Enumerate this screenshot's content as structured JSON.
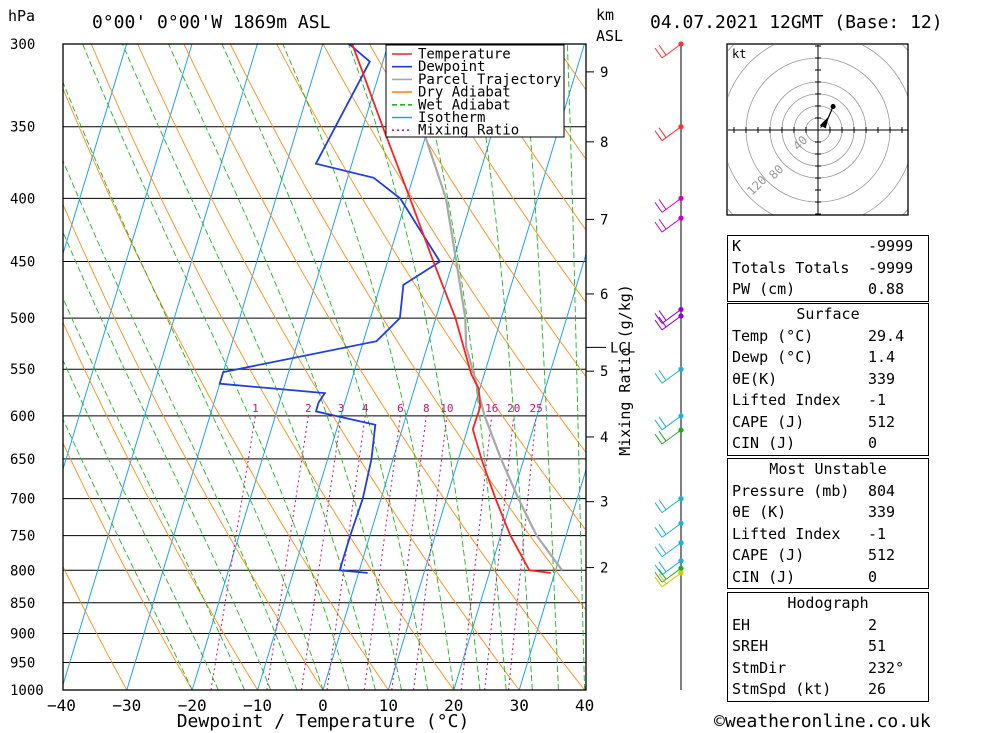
{
  "header": {
    "hpa_unit": "hPa",
    "location": "0°00' 0°00'W 1869m ASL",
    "km_unit": "km",
    "asl_unit": "ASL",
    "datetime": "04.07.2021 12GMT (Base: 12)"
  },
  "footer": {
    "copyright": "©weatheronline.co.uk"
  },
  "chart_data": {
    "type": "skew-t",
    "xlabel": "Dewpoint / Temperature (°C)",
    "ylabel_left": "hPa",
    "ylabel_right": "Mixing Ratio (g/kg)",
    "x_ticks": [
      -40,
      -30,
      -20,
      -10,
      0,
      10,
      20,
      30,
      40
    ],
    "x_tick_labels": [
      "−40",
      "−30",
      "−20",
      "−10",
      "0",
      "10",
      "20",
      "30",
      "40"
    ],
    "pressure_levels": [
      300,
      350,
      400,
      450,
      500,
      550,
      600,
      650,
      700,
      750,
      800,
      850,
      900,
      950,
      1000
    ],
    "km_ticks": [
      {
        "km": 2,
        "p": 796
      },
      {
        "km": 3,
        "p": 704
      },
      {
        "km": 4,
        "p": 624
      },
      {
        "km": 5,
        "p": 552
      },
      {
        "km": 6,
        "p": 478
      },
      {
        "km": 7,
        "p": 416
      },
      {
        "km": 8,
        "p": 360
      },
      {
        "km": 9,
        "p": 316
      }
    ],
    "lcl": {
      "label": "LCL",
      "p": 528
    },
    "mixing_ratio_labels": [
      "1",
      "2",
      "3",
      "4",
      "6",
      "8",
      "10",
      "16",
      "20",
      "25"
    ],
    "mixing_ratio_values": [
      1,
      2,
      3,
      4,
      6,
      8,
      10,
      16,
      20,
      25
    ],
    "legend": [
      {
        "name": "Temperature",
        "color": "#ff2020",
        "style": "solid"
      },
      {
        "name": "Dewpoint",
        "color": "#1f3fdc",
        "style": "solid"
      },
      {
        "name": "Parcel Trajectory",
        "color": "#a8a8a8",
        "style": "solid"
      },
      {
        "name": "Dry Adiabat",
        "color": "#ff8c1a",
        "style": "solid"
      },
      {
        "name": "Wet Adiabat",
        "color": "#1fb51f",
        "style": "dashed"
      },
      {
        "name": "Isotherm",
        "color": "#1ea4e8",
        "style": "solid"
      },
      {
        "name": "Mixing Ratio",
        "color": "#cc1177",
        "style": "dotted"
      }
    ],
    "temperature": [
      {
        "p": 804,
        "t": 29.4
      },
      {
        "p": 800,
        "t": 26.0
      },
      {
        "p": 750,
        "t": 21.5
      },
      {
        "p": 700,
        "t": 17.5
      },
      {
        "p": 650,
        "t": 13.5
      },
      {
        "p": 615,
        "t": 10.8
      },
      {
        "p": 590,
        "t": 10.9
      },
      {
        "p": 570,
        "t": 9.8
      },
      {
        "p": 555,
        "t": 8.0
      },
      {
        "p": 500,
        "t": 3.0
      },
      {
        "p": 450,
        "t": -3.0
      },
      {
        "p": 400,
        "t": -9.5
      },
      {
        "p": 350,
        "t": -17.0
      },
      {
        "p": 300,
        "t": -25.5
      }
    ],
    "dewpoint": [
      {
        "p": 804,
        "t": 1.4
      },
      {
        "p": 800,
        "t": -3.0
      },
      {
        "p": 750,
        "t": -3.0
      },
      {
        "p": 700,
        "t": -2.8
      },
      {
        "p": 650,
        "t": -3.3
      },
      {
        "p": 610,
        "t": -4.3
      },
      {
        "p": 595,
        "t": -14.0
      },
      {
        "p": 585,
        "t": -14.0
      },
      {
        "p": 575,
        "t": -13.5
      },
      {
        "p": 565,
        "t": -30.0
      },
      {
        "p": 553,
        "t": -30.0
      },
      {
        "p": 522,
        "t": -8.0
      },
      {
        "p": 500,
        "t": -5.5
      },
      {
        "p": 470,
        "t": -6.5
      },
      {
        "p": 450,
        "t": -2.0
      },
      {
        "p": 400,
        "t": -11.0
      },
      {
        "p": 385,
        "t": -16.0
      },
      {
        "p": 375,
        "t": -25.5
      },
      {
        "p": 310,
        "t": -22.0
      },
      {
        "p": 300,
        "t": -26.0
      }
    ],
    "parcel": [
      {
        "p": 800,
        "t": 31.0
      },
      {
        "p": 750,
        "t": 25.5
      },
      {
        "p": 700,
        "t": 21.0
      },
      {
        "p": 650,
        "t": 16.5
      },
      {
        "p": 600,
        "t": 12.0
      },
      {
        "p": 550,
        "t": 8.0
      },
      {
        "p": 528,
        "t": 6.0
      },
      {
        "p": 500,
        "t": 4.5
      },
      {
        "p": 450,
        "t": 0.5
      },
      {
        "p": 400,
        "t": -4.0
      },
      {
        "p": 350,
        "t": -11.0
      },
      {
        "p": 300,
        "t": -20.0
      }
    ],
    "wind_barbs": [
      {
        "p": 300,
        "level_color": "#ff3030"
      },
      {
        "p": 350,
        "level_color": "#ff3030"
      },
      {
        "p": 400,
        "level_color": "#cc00cc"
      },
      {
        "p": 415,
        "level_color": "#cc00cc"
      },
      {
        "p": 492,
        "level_color": "#9900cc"
      },
      {
        "p": 498,
        "level_color": "#9900cc"
      },
      {
        "p": 550,
        "level_color": "#20b0d0"
      },
      {
        "p": 600,
        "level_color": "#20b0d0"
      },
      {
        "p": 616,
        "level_color": "#22aa22"
      },
      {
        "p": 700,
        "level_color": "#20b0d0"
      },
      {
        "p": 733,
        "level_color": "#20b0d0"
      },
      {
        "p": 760,
        "level_color": "#20b0d0"
      },
      {
        "p": 786,
        "level_color": "#20b0d0"
      },
      {
        "p": 797,
        "level_color": "#22aa22"
      },
      {
        "p": 804,
        "level_color": "#cccc00"
      }
    ],
    "hodograph": {
      "unit": "kt",
      "ring_labels": [
        "120",
        "80",
        "40"
      ],
      "points": [
        {
          "u": 3,
          "v": 3
        },
        {
          "u": 6,
          "v": 6
        },
        {
          "u": 10,
          "v": 10
        },
        {
          "u": 12,
          "v": 14
        },
        {
          "u": 18,
          "v": 28
        }
      ],
      "storm_motion": {
        "u": 20,
        "v": 16
      }
    }
  },
  "indices": {
    "k_label": "K",
    "k_value": "-9999",
    "tt_label": "Totals Totals",
    "tt_value": "-9999",
    "pw_label": "PW (cm)",
    "pw_value": "0.88"
  },
  "surface": {
    "title": "Surface",
    "temp_label": "Temp (°C)",
    "temp_value": "29.4",
    "dewp_label": "Dewp (°C)",
    "dewp_value": "1.4",
    "thetae_label": "θE(K)",
    "thetae_value": "339",
    "li_label": "Lifted Index",
    "li_value": "-1",
    "cape_label": "CAPE (J)",
    "cape_value": "512",
    "cin_label": "CIN (J)",
    "cin_value": "0"
  },
  "most_unstable": {
    "title": "Most Unstable",
    "pressure_label": "Pressure (mb)",
    "pressure_value": "804",
    "thetae_label": "θE (K)",
    "thetae_value": "339",
    "li_label": "Lifted Index",
    "li_value": "-1",
    "cape_label": "CAPE (J)",
    "cape_value": "512",
    "cin_label": "CIN (J)",
    "cin_value": "0"
  },
  "hodograph_stats": {
    "title": "Hodograph",
    "eh_label": "EH",
    "eh_value": "2",
    "sreh_label": "SREH",
    "sreh_value": "51",
    "stmdir_label": "StmDir",
    "stmdir_value": "232°",
    "stmspd_label": "StmSpd (kt)",
    "stmspd_value": "26"
  }
}
